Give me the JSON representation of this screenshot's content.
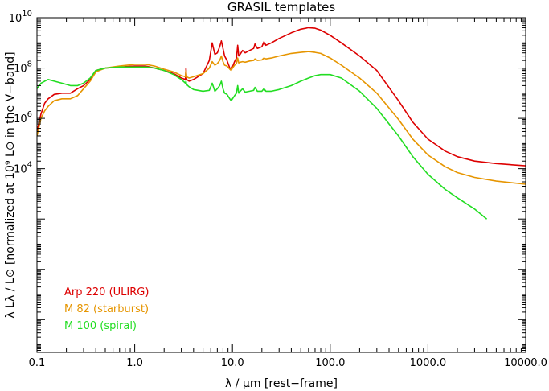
{
  "chart_data": {
    "type": "line",
    "title": "GRASIL templates",
    "xlabel": "λ / μm [rest−frame]",
    "ylabel": "λ Lλ / L⊙ [normalized at 10⁹ L⊙ in the V−band]",
    "xscale": "log",
    "yscale": "log",
    "xlim": [
      0.1,
      10000
    ],
    "ylim": [
      0.0005,
      10000000000
    ],
    "x_ticks": [
      {
        "value": 0.1,
        "label": "0.1"
      },
      {
        "value": 1,
        "label": "1.0"
      },
      {
        "value": 10,
        "label": "10.0"
      },
      {
        "value": 100,
        "label": "100.0"
      },
      {
        "value": 1000,
        "label": "1000.0"
      },
      {
        "value": 10000,
        "label": "10000.0"
      }
    ],
    "y_ticks": [
      {
        "value": 10000,
        "label_base": "10",
        "label_exp": "4"
      },
      {
        "value": 1000000,
        "label_base": "10",
        "label_exp": "6"
      },
      {
        "value": 100000000,
        "label_base": "10",
        "label_exp": "8"
      },
      {
        "value": 10000000000,
        "label_base": "10",
        "label_exp": "10"
      }
    ],
    "legend_position": "bottom-left",
    "series": [
      {
        "name": "Arp 220 (ULIRG)",
        "color": "#dd0000",
        "x": [
          0.1,
          0.11,
          0.12,
          0.13,
          0.15,
          0.18,
          0.22,
          0.26,
          0.3,
          0.35,
          0.4,
          0.5,
          0.7,
          1.0,
          1.3,
          1.6,
          2.0,
          2.5,
          3.0,
          3.3,
          3.35,
          3.4,
          3.6,
          4.0,
          5.0,
          5.8,
          6.2,
          6.6,
          7.0,
          7.4,
          7.7,
          8.0,
          8.3,
          8.8,
          9.4,
          9.7,
          10.0,
          10.5,
          11.0,
          11.3,
          11.6,
          12.0,
          12.7,
          13.5,
          15.0,
          16.5,
          17.0,
          18.0,
          20.0,
          21.0,
          22.0,
          25.0,
          30.0,
          40.0,
          50.0,
          60.0,
          70.0,
          80.0,
          100.0,
          130.0,
          200.0,
          300.0,
          500.0,
          700.0,
          1000.0,
          1500.0,
          2000.0,
          3000.0,
          5000.0,
          10000.0
        ],
        "values": [
          300000,
          1500000,
          4000000,
          6000000,
          9000000,
          10000000,
          10000000,
          15000000,
          20000000,
          35000000,
          80000000,
          100000000,
          110000000,
          120000000,
          120000000,
          100000000,
          80000000,
          60000000,
          40000000,
          35000000,
          100000000,
          35000000,
          30000000,
          35000000,
          60000000,
          200000000,
          1000000000,
          350000000,
          400000000,
          700000000,
          1200000000,
          600000000,
          300000000,
          200000000,
          100000000,
          90000000,
          110000000,
          180000000,
          250000000,
          800000000,
          300000000,
          350000000,
          500000000,
          400000000,
          500000000,
          600000000,
          900000000,
          600000000,
          700000000,
          1100000000,
          800000000,
          1000000000,
          1500000000,
          2500000000,
          3500000000,
          4000000000,
          3800000000,
          3200000000,
          2000000000,
          1000000000,
          300000000,
          80000000,
          5000000,
          700000,
          150000,
          50000,
          30000,
          20000,
          16000,
          13000
        ]
      },
      {
        "name": "M 82 (starburst)",
        "color": "#e69500",
        "x": [
          0.1,
          0.11,
          0.12,
          0.13,
          0.15,
          0.18,
          0.22,
          0.26,
          0.3,
          0.35,
          0.4,
          0.5,
          0.7,
          1.0,
          1.3,
          1.6,
          2.0,
          2.5,
          3.0,
          3.3,
          3.35,
          3.4,
          3.6,
          4.0,
          5.0,
          5.8,
          6.2,
          6.6,
          7.0,
          7.4,
          7.7,
          8.0,
          8.3,
          8.8,
          9.4,
          9.7,
          10.0,
          10.5,
          11.0,
          11.3,
          11.6,
          12.0,
          12.7,
          13.5,
          15.0,
          16.5,
          17.0,
          18.0,
          20.0,
          21.0,
          22.0,
          25.0,
          30.0,
          40.0,
          50.0,
          60.0,
          70.0,
          80.0,
          100.0,
          130.0,
          200.0,
          300.0,
          500.0,
          700.0,
          1000.0,
          1500.0,
          2000.0,
          3000.0,
          5000.0,
          10000.0
        ],
        "values": [
          200000,
          1000000,
          2000000,
          3000000,
          5000000,
          6000000,
          6000000,
          8000000,
          15000000,
          30000000,
          70000000,
          100000000,
          120000000,
          140000000,
          140000000,
          120000000,
          90000000,
          70000000,
          50000000,
          45000000,
          80000000,
          45000000,
          40000000,
          45000000,
          60000000,
          100000000,
          180000000,
          130000000,
          150000000,
          200000000,
          300000000,
          180000000,
          130000000,
          120000000,
          90000000,
          80000000,
          100000000,
          130000000,
          150000000,
          250000000,
          160000000,
          170000000,
          180000000,
          170000000,
          190000000,
          200000000,
          230000000,
          200000000,
          210000000,
          250000000,
          230000000,
          250000000,
          300000000,
          380000000,
          420000000,
          450000000,
          420000000,
          380000000,
          250000000,
          130000000,
          40000000,
          10000000,
          900000,
          150000,
          35000,
          12000,
          7000,
          4500,
          3200,
          2400
        ]
      },
      {
        "name": "M 100 (spiral)",
        "color": "#22dd22",
        "x": [
          0.1,
          0.11,
          0.12,
          0.13,
          0.15,
          0.18,
          0.22,
          0.26,
          0.3,
          0.35,
          0.4,
          0.5,
          0.7,
          1.0,
          1.3,
          1.6,
          2.0,
          2.5,
          3.0,
          3.3,
          3.35,
          3.4,
          3.6,
          4.0,
          5.0,
          5.8,
          6.2,
          6.6,
          7.0,
          7.4,
          7.7,
          8.0,
          8.3,
          8.8,
          9.4,
          9.7,
          10.0,
          10.5,
          11.0,
          11.3,
          11.6,
          12.0,
          12.7,
          13.5,
          15.0,
          16.5,
          17.0,
          18.0,
          20.0,
          21.0,
          22.0,
          25.0,
          30.0,
          40.0,
          50.0,
          60.0,
          70.0,
          80.0,
          100.0,
          130.0,
          200.0,
          300.0,
          500.0,
          700.0,
          1000.0,
          1500.0,
          2000.0,
          3000.0,
          4000.0
        ],
        "values": [
          15000000,
          25000000,
          30000000,
          35000000,
          30000000,
          25000000,
          20000000,
          20000000,
          25000000,
          40000000,
          80000000,
          100000000,
          110000000,
          110000000,
          110000000,
          100000000,
          80000000,
          55000000,
          35000000,
          25000000,
          30000000,
          22000000,
          18000000,
          14000000,
          12000000,
          13000000,
          25000000,
          12000000,
          15000000,
          20000000,
          30000000,
          15000000,
          10000000,
          9000000,
          6000000,
          5000000,
          6000000,
          8000000,
          10000000,
          20000000,
          10000000,
          12000000,
          15000000,
          11000000,
          12000000,
          13000000,
          17000000,
          12000000,
          12000000,
          15000000,
          12000000,
          12000000,
          14000000,
          20000000,
          30000000,
          40000000,
          50000000,
          55000000,
          55000000,
          40000000,
          12000000,
          2500000,
          200000,
          30000,
          6000,
          1500,
          700,
          250,
          100
        ]
      }
    ]
  }
}
